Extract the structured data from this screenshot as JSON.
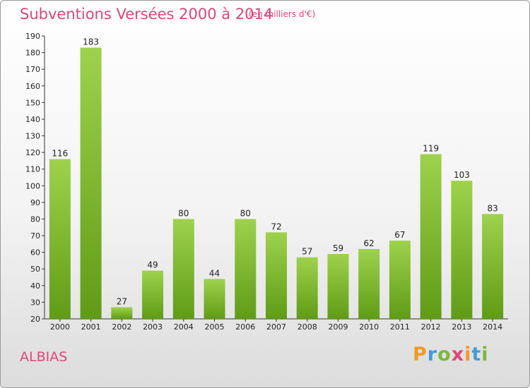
{
  "chart_data": {
    "type": "bar",
    "title": "Subventions Versées 2000 à 2014",
    "subtitle": "(en milliers d'€)",
    "categories": [
      "2000",
      "2001",
      "2002",
      "2003",
      "2004",
      "2005",
      "2006",
      "2007",
      "2008",
      "2009",
      "2010",
      "2011",
      "2012",
      "2013",
      "2014"
    ],
    "values": [
      116,
      183,
      27,
      49,
      80,
      44,
      80,
      72,
      57,
      59,
      62,
      67,
      119,
      103,
      83
    ],
    "ylim": [
      20,
      190
    ],
    "yticks": [
      20,
      30,
      40,
      50,
      60,
      70,
      80,
      90,
      100,
      110,
      120,
      130,
      140,
      150,
      160,
      170,
      180,
      190
    ],
    "grid": false,
    "bar_color_top": "#9ed24c",
    "bar_color_bottom": "#5f9c15"
  },
  "place_name": "ALBIAS",
  "brand": {
    "letters": [
      "P",
      "r",
      "o",
      "x",
      "i",
      "t",
      "i"
    ],
    "colors": [
      "#f39a1f",
      "#3d9de0",
      "#7ab83a",
      "#e0457a",
      "#f39a1f",
      "#3d9de0",
      "#7ab83a"
    ]
  }
}
